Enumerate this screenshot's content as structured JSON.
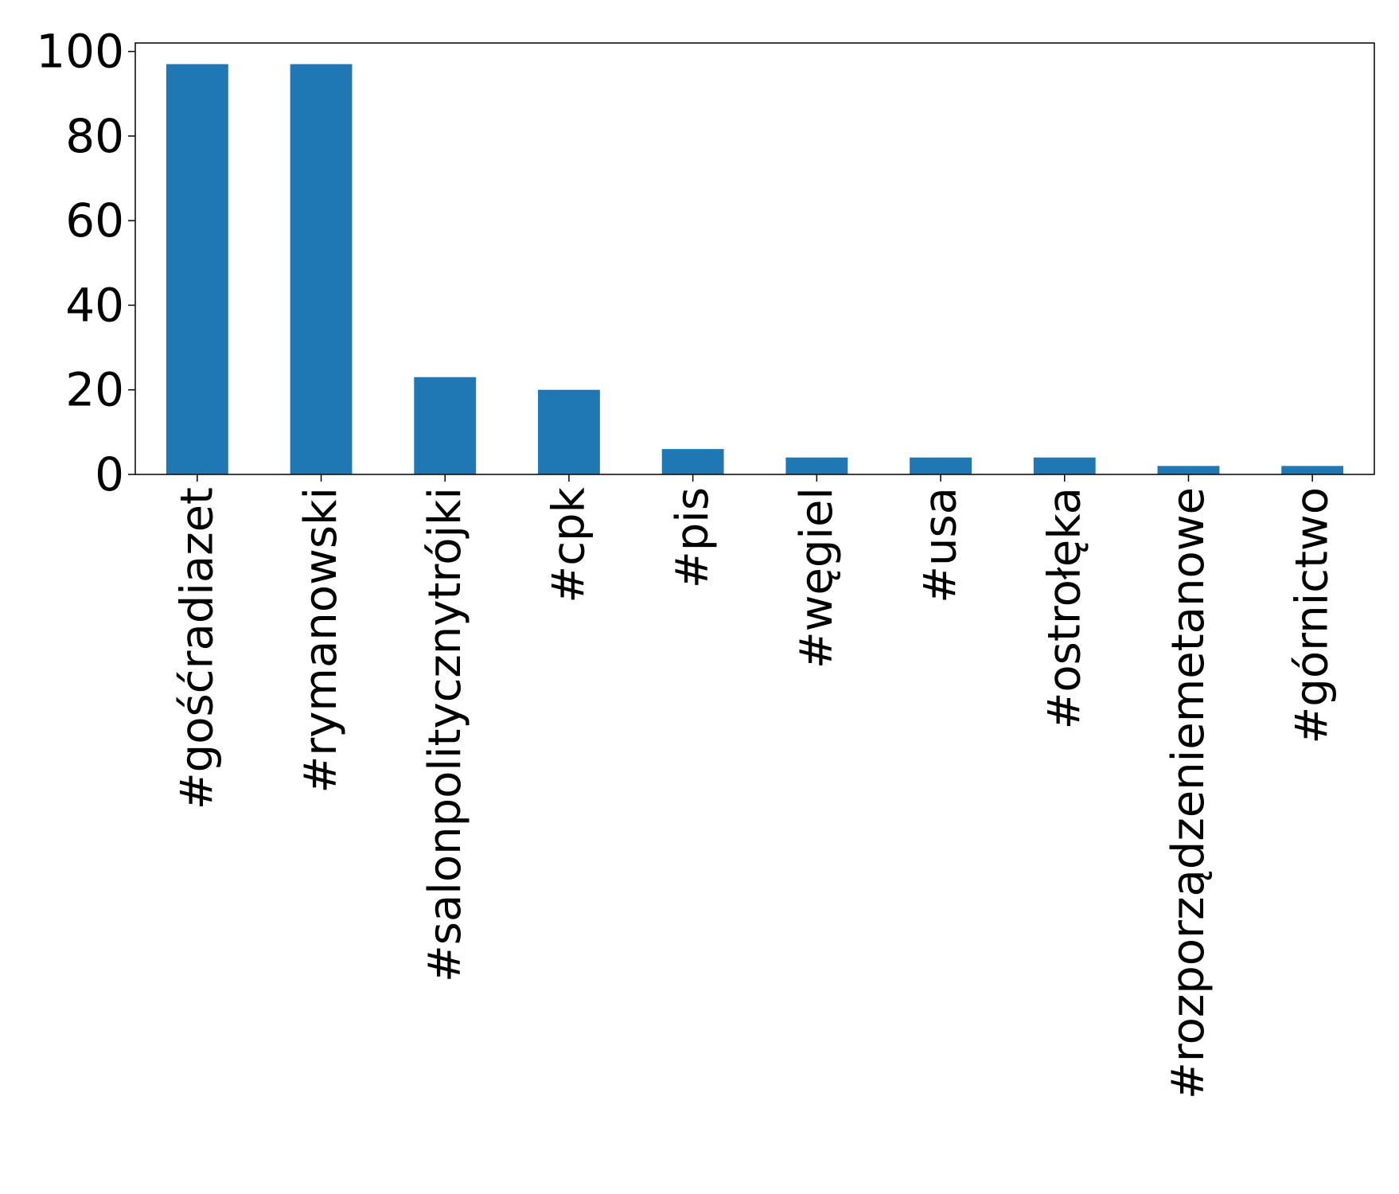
{
  "chart_data": {
    "type": "bar",
    "categories": [
      "#gośćradiazet",
      "#rymanowski",
      "#salonpolitycznytrójki",
      "#cpk",
      "#pis",
      "#węgiel",
      "#usa",
      "#ostrołęka",
      "#rozporządzeniemetanowe",
      "#górnictwo"
    ],
    "values": [
      97,
      97,
      23,
      20,
      6,
      4,
      4,
      4,
      2,
      2
    ],
    "title": "",
    "xlabel": "",
    "ylabel": "",
    "ylim": [
      0,
      102
    ],
    "yticks": [
      0,
      20,
      40,
      60,
      80,
      100
    ],
    "grid": false,
    "bar_color": "#1f77b4",
    "axis_color": "#000000"
  }
}
